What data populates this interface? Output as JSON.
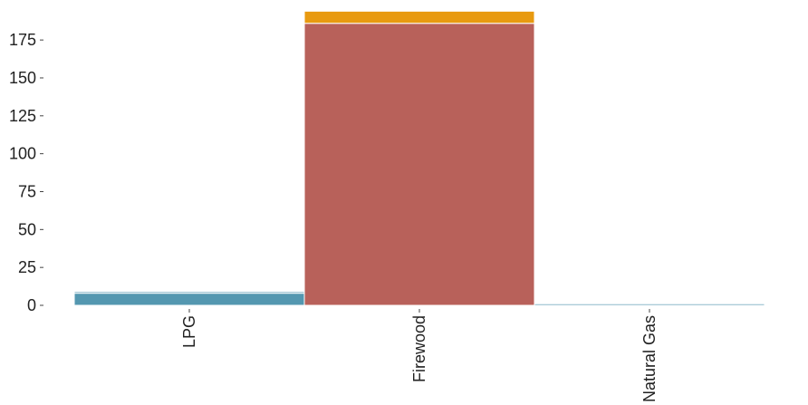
{
  "chart_data": {
    "type": "bar",
    "stacked": true,
    "categories": [
      "LPG",
      "Firewood",
      "Natural Gas"
    ],
    "series": [
      {
        "values": [
          8,
          186,
          1
        ],
        "color": "#5497b0"
      },
      {
        "values": [
          1,
          0,
          0
        ],
        "color": "#5497b0"
      },
      {
        "values": [
          0,
          0,
          0
        ],
        "color": "#b8615a"
      },
      {
        "values": [
          0,
          8,
          0
        ],
        "color": "#e89a10"
      }
    ],
    "segment_colors": [
      [
        "#5497b0",
        "#b8615a",
        "#5497b0"
      ],
      [
        "#5497b0",
        "#b8615a",
        "#5497b0"
      ],
      [
        "#b8615a",
        "#b8615a",
        "#b8615a"
      ],
      [
        "#e89a10",
        "#e89a10",
        "#e89a10"
      ]
    ],
    "y_ticks": [
      0,
      25,
      50,
      75,
      100,
      125,
      150,
      175
    ],
    "ylim": [
      0,
      196
    ],
    "title": "",
    "xlabel": "",
    "ylabel": "",
    "grid": false,
    "legend": "none"
  }
}
